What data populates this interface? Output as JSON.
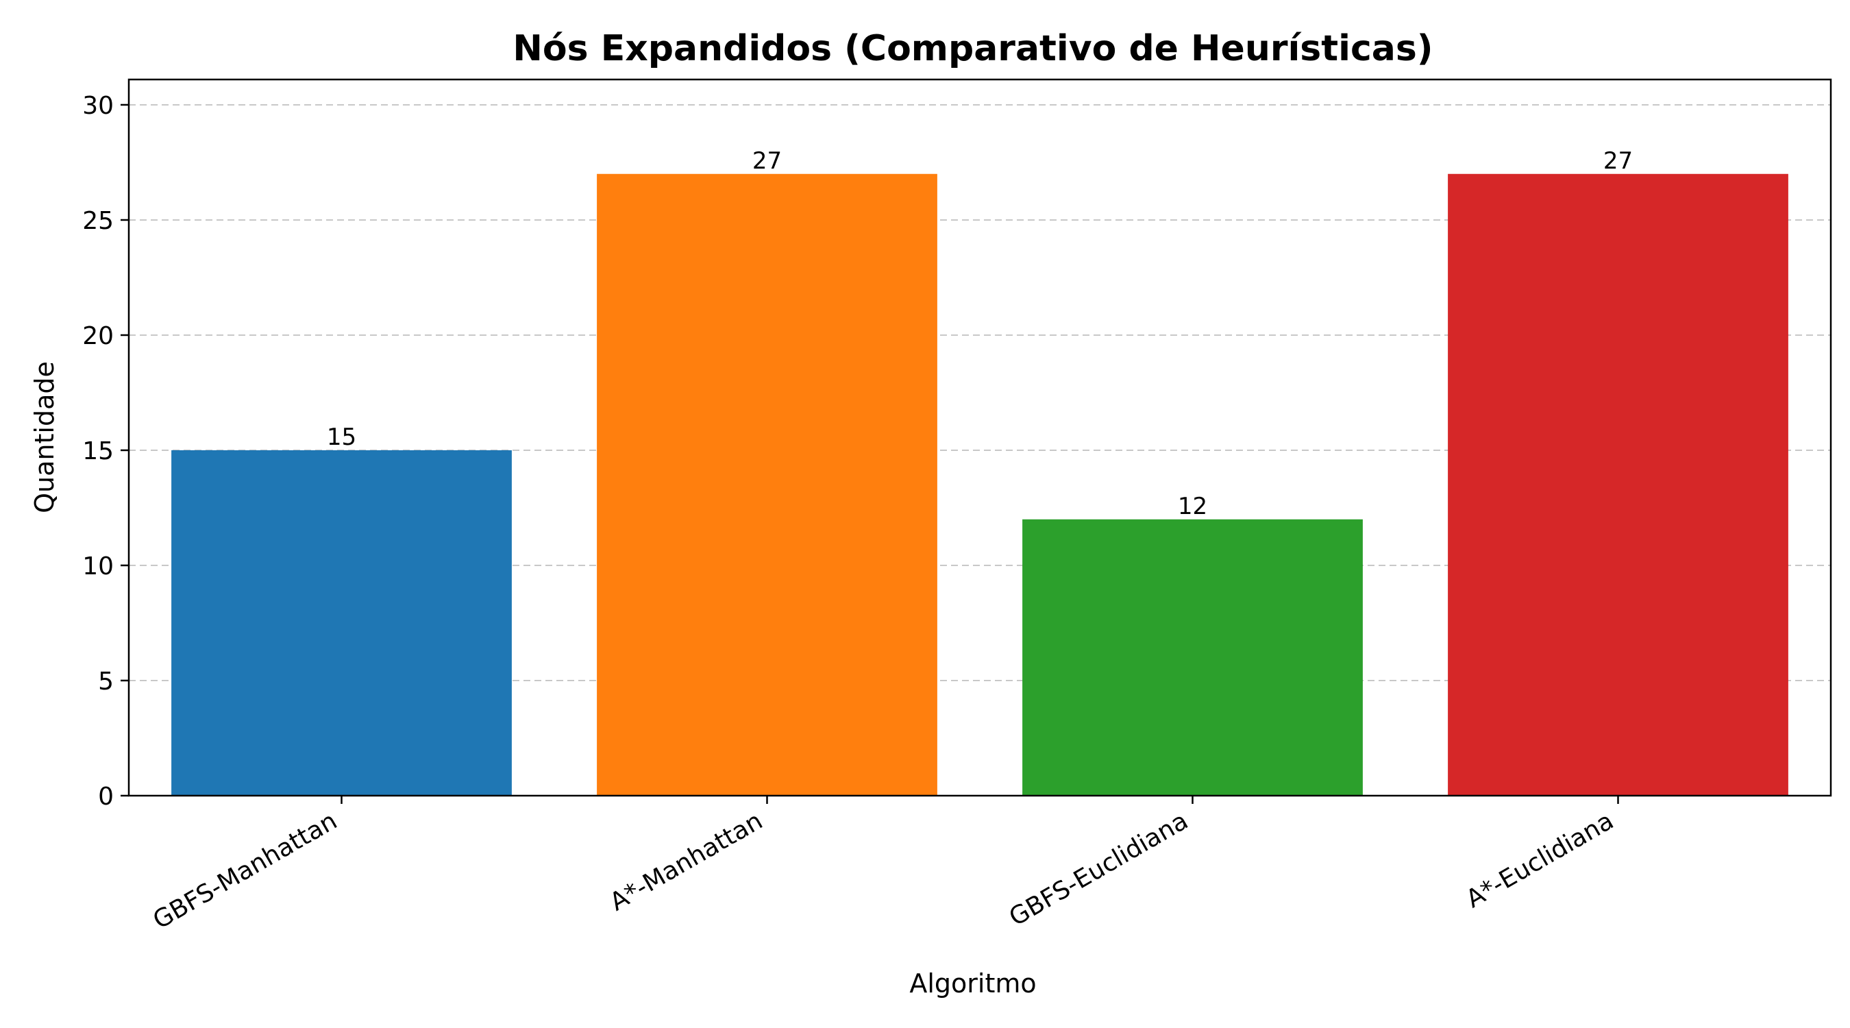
{
  "chart_data": {
    "type": "bar",
    "title": "Nós Expandidos (Comparativo de Heurísticas)",
    "xlabel": "Algoritmo",
    "ylabel": "Quantidade",
    "categories": [
      "GBFS-Manhattan",
      "A*-Manhattan",
      "GBFS-Euclidiana",
      "A*-Euclidiana"
    ],
    "values": [
      15,
      27,
      12,
      27
    ],
    "data_labels": [
      "15",
      "27",
      "12",
      "27"
    ],
    "colors": [
      "#1f77b4",
      "#ff7f0e",
      "#2ca02c",
      "#d62728"
    ],
    "ylim": [
      0,
      31.1
    ],
    "yticks": [
      0,
      5,
      10,
      15,
      20,
      25,
      30
    ],
    "grid": "y-dashed",
    "legend": "none"
  }
}
